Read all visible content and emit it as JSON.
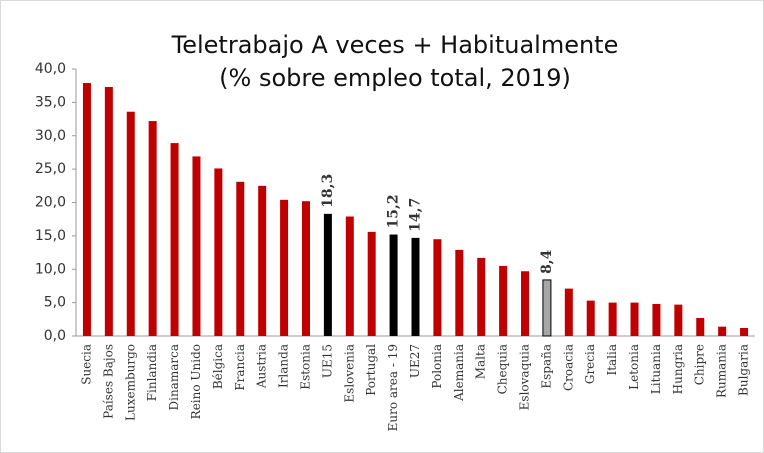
{
  "chart_data": {
    "type": "bar",
    "title": "Teletrabajo A veces + Habitualmente",
    "subtitle": "(% sobre empleo total, 2019)",
    "categories": [
      "Suecia",
      "Países Bajos",
      "Luxemburgo",
      "Finlandia",
      "Dinamarca",
      "Reino Unido",
      "Bélgica",
      "Francia",
      "Austria",
      "Irlanda",
      "Estonia",
      "UE15",
      "Eslovenia",
      "Portugal",
      "Euro area - 19",
      "UE27",
      "Polonia",
      "Alemania",
      "Malta",
      "Chequia",
      "Eslovaquia",
      "España",
      "Croacia",
      "Grecia",
      "Italia",
      "Letonia",
      "Lituania",
      "Hungria",
      "Chipre",
      "Rumania",
      "Bulgaria"
    ],
    "values": [
      37.9,
      37.3,
      33.6,
      32.2,
      28.9,
      26.9,
      25.1,
      23.1,
      22.5,
      20.4,
      20.2,
      18.3,
      17.9,
      15.6,
      15.2,
      14.7,
      14.5,
      12.9,
      11.7,
      10.5,
      9.7,
      8.4,
      7.1,
      5.3,
      5.0,
      5.0,
      4.8,
      4.7,
      2.7,
      1.4,
      1.2
    ],
    "value_labels": [
      null,
      null,
      null,
      null,
      null,
      null,
      null,
      null,
      null,
      null,
      null,
      "18,3",
      null,
      null,
      "15,2",
      "14,7",
      null,
      null,
      null,
      null,
      null,
      "8,4",
      null,
      null,
      null,
      null,
      null,
      null,
      null,
      null,
      null
    ],
    "colors": [
      "#c00000",
      "#c00000",
      "#c00000",
      "#c00000",
      "#c00000",
      "#c00000",
      "#c00000",
      "#c00000",
      "#c00000",
      "#c00000",
      "#c00000",
      "#000000",
      "#c00000",
      "#c00000",
      "#000000",
      "#000000",
      "#c00000",
      "#c00000",
      "#c00000",
      "#c00000",
      "#c00000",
      "#a6a6a6",
      "#c00000",
      "#c00000",
      "#c00000",
      "#c00000",
      "#c00000",
      "#c00000",
      "#c00000",
      "#c00000",
      "#c00000"
    ],
    "ylim": [
      0,
      40
    ],
    "yticks": [
      {
        "value": 0,
        "label": "0,0"
      },
      {
        "value": 5,
        "label": "5,0"
      },
      {
        "value": 10,
        "label": "10,0"
      },
      {
        "value": 15,
        "label": "15,0"
      },
      {
        "value": 20,
        "label": "20,0"
      },
      {
        "value": 25,
        "label": "25,0"
      },
      {
        "value": 30,
        "label": "30,0"
      },
      {
        "value": 35,
        "label": "35,0"
      },
      {
        "value": 40,
        "label": "40,0"
      }
    ],
    "grid": false
  }
}
